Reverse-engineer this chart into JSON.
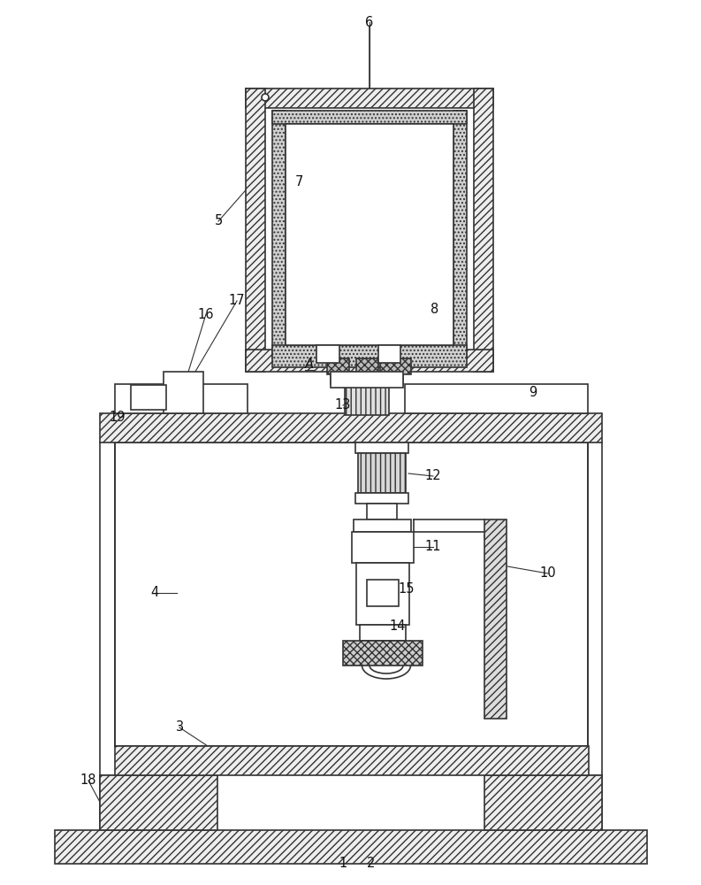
{
  "bg": "#ffffff",
  "lc": "#333333",
  "lw": 1.2,
  "fs": 10.5,
  "fig_w": 7.93,
  "fig_h": 10.0,
  "dpi": 100
}
